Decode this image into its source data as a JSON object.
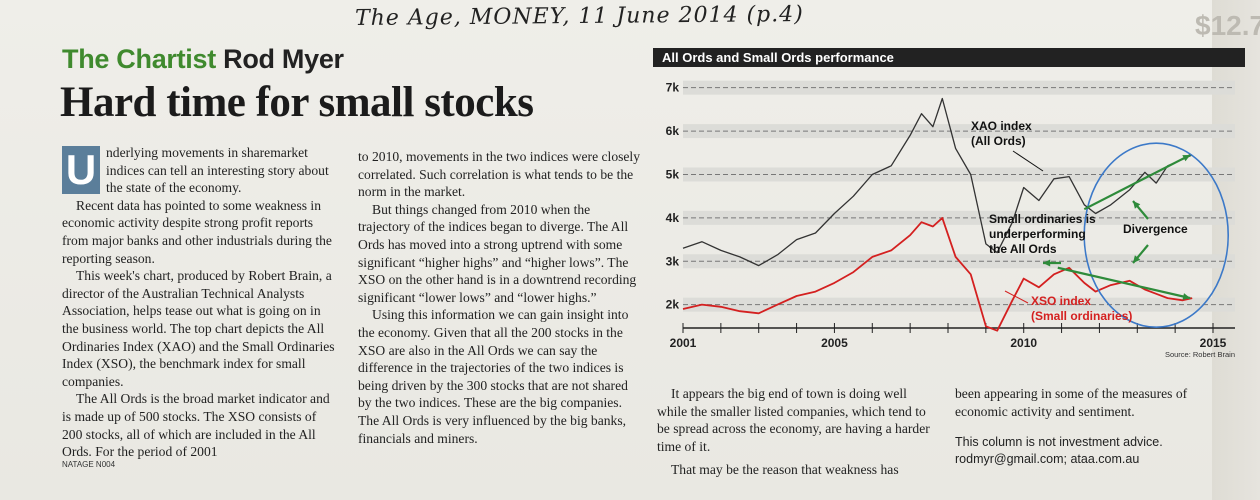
{
  "handnote": "The Age, MONEY, 11 June 2014 (p.4)",
  "kicker": {
    "section": "The Chartist",
    "author": "Rod Myer"
  },
  "headline": "Hard time for small stocks",
  "dropcap": "U",
  "col1": {
    "p1_rest": "nderlying movements in sharemarket indices can tell an interesting story about the state of the economy.",
    "p2": "Recent data has pointed to some weakness in economic activity despite strong profit reports from major banks and other industrials during the reporting season.",
    "p3": "This week's chart, produced by Robert Brain, a director of the Australian Technical Analysts Association, helps tease out what is going on in the business world. The top chart depicts the All Ordinaries Index (XAO) and the Small Ordinaries Index (XSO), the benchmark index for small companies.",
    "p4": "The All Ords is the broad market indicator and is made up of 500 stocks. The XSO consists of 200 stocks, all of which are included in the All Ords. For the period of 2001"
  },
  "col2": {
    "p1": "to 2010, movements in the two indices were closely correlated. Such correlation is what tends to be the norm in the market.",
    "p2": "But things changed from 2010 when the trajectory of the indices began to diverge. The All Ords has moved into a strong uptrend with some significant “higher highs” and “higher lows”. The XSO on the other hand is in a downtrend recording significant “lower lows” and “lower highs.”",
    "p3": "Using this information we can gain insight into the economy. Given that all the 200 stocks in the XSO are also in the All Ords we can say the difference in the trajectories of the two indices is being driven by the 300 stocks that are not shared by the two indices. These are the big companies. The All Ords is very influenced by the big banks, financials and miners."
  },
  "col3": {
    "p1": "It appears the big end of town is doing well while the smaller listed companies, which tend to be spread across the economy, are having a harder time of it.",
    "p2": "That may be the reason that weakness has"
  },
  "col4": {
    "p1": "been appearing in some of the measures of economic activity and sentiment.",
    "disclaimer": "This column is not investment advice.",
    "contact": "rodmyr@gmail.com; ataa.com.au"
  },
  "tag": "NATAGE N004",
  "chart_data": {
    "type": "line",
    "title": "All Ords and Small Ords performance",
    "source": "Source: Robert Brain",
    "x_ticks": [
      "2001",
      "2005",
      "2010",
      "2015"
    ],
    "y_ticks": [
      "2k",
      "3k",
      "4k",
      "5k",
      "6k",
      "7k"
    ],
    "xlim": [
      2001,
      2015
    ],
    "ylim": [
      1600,
      7200
    ],
    "grid": "dashed horizontal",
    "series": [
      {
        "name": "XAO index (All Ords)",
        "color": "#333333",
        "x": [
          2001,
          2001.5,
          2002,
          2002.5,
          2003,
          2003.5,
          2004,
          2004.5,
          2005,
          2005.5,
          2006,
          2006.5,
          2007,
          2007.3,
          2007.6,
          2007.85,
          2008.2,
          2008.6,
          2009.0,
          2009.3,
          2009.7,
          2010.0,
          2010.4,
          2010.8,
          2011.2,
          2011.6,
          2011.9,
          2012.3,
          2012.8,
          2013.2,
          2013.5,
          2013.8,
          2014.2,
          2014.45
        ],
        "y": [
          3300,
          3450,
          3250,
          3100,
          2900,
          3150,
          3500,
          3650,
          4100,
          4500,
          5000,
          5200,
          5900,
          6400,
          6100,
          6750,
          5600,
          5000,
          3400,
          3200,
          3900,
          4700,
          4400,
          4900,
          4950,
          4300,
          4100,
          4300,
          4650,
          5050,
          4800,
          5200,
          5350,
          5450
        ]
      },
      {
        "name": "XSO index (Small ordinaries)",
        "color": "#d42020",
        "x": [
          2001,
          2001.5,
          2002,
          2002.5,
          2003,
          2003.5,
          2004,
          2004.5,
          2005,
          2005.5,
          2006,
          2006.5,
          2007,
          2007.3,
          2007.6,
          2007.85,
          2008.2,
          2008.6,
          2009.0,
          2009.3,
          2009.7,
          2010.0,
          2010.4,
          2010.8,
          2011.2,
          2011.6,
          2011.9,
          2012.3,
          2012.8,
          2013.2,
          2013.5,
          2013.8,
          2014.2,
          2014.45
        ],
        "y": [
          1900,
          2000,
          1950,
          1850,
          1800,
          2000,
          2200,
          2300,
          2500,
          2750,
          3100,
          3250,
          3600,
          3900,
          3800,
          4000,
          3100,
          2700,
          1500,
          1400,
          2100,
          2600,
          2400,
          2700,
          2850,
          2500,
          2300,
          2450,
          2550,
          2350,
          2250,
          2150,
          2100,
          2150
        ]
      }
    ],
    "annotations": {
      "xao_label": [
        "XAO index",
        "(All Ords)"
      ],
      "xso_label": [
        "XSO index",
        "(Small ordinaries)"
      ],
      "under_label": [
        "Small ordinaries is",
        "underperforming",
        "the All Ords"
      ],
      "divergence_label": "Divergence",
      "highlight_circle": "2010–2015 divergence",
      "accent": "#2e8b3a"
    }
  }
}
